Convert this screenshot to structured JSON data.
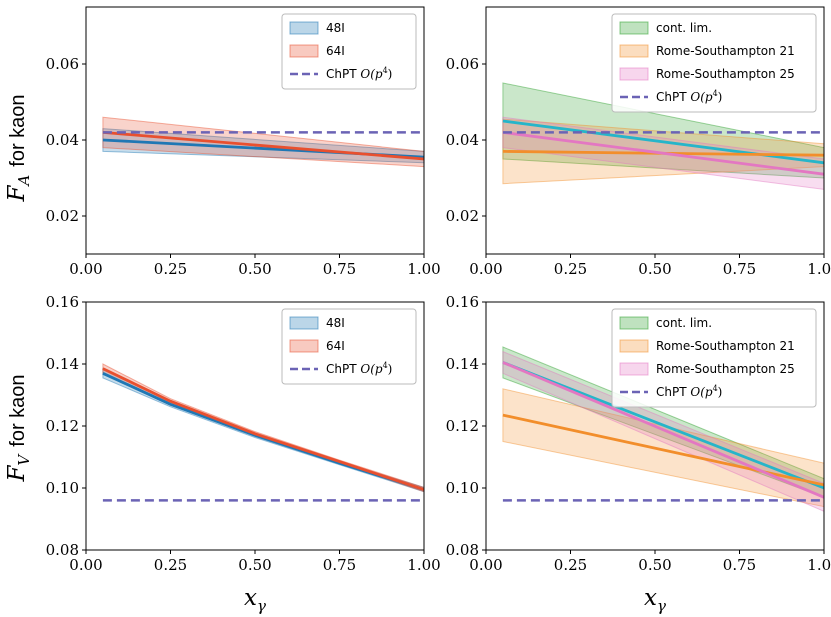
{
  "figure": {
    "xlabel_main": "x",
    "xlabel_sub": "γ",
    "ylabel_top_main": "F",
    "ylabel_top_sub": "A",
    "ylabel_top_rest": "for kaon",
    "ylabel_bottom_main": "F",
    "ylabel_bottom_sub": "V",
    "ylabel_bottom_rest": "for kaon",
    "x_tick_labels": [
      "0.00",
      "0.25",
      "0.50",
      "0.75",
      "1.00"
    ]
  },
  "colors": {
    "blue": "#1f77b4",
    "red": "#e8502f",
    "purple": "#6b63b5",
    "teal": "#26b5c9",
    "green": "#2ca02c",
    "orange": "#f28e2b",
    "pink": "#e377c2"
  },
  "chart_data": [
    {
      "type": "line",
      "id": "FA-lattice",
      "title": "",
      "xlabel": "",
      "ylabel": "F_A for kaon",
      "xlim": [
        0.0,
        1.0
      ],
      "ylim": [
        0.01,
        0.075
      ],
      "yticks": [
        0.02,
        0.04,
        0.06
      ],
      "ytick_labels": [
        "0.02",
        "0.04",
        "0.06"
      ],
      "legend_position": "top-right",
      "series": [
        {
          "name": "48I",
          "kind": "band",
          "color": "#1f77b4",
          "x": [
            0.05,
            1.0
          ],
          "y": [
            0.04,
            0.0355
          ],
          "lower": [
            0.037,
            0.034
          ],
          "upper": [
            0.043,
            0.037
          ]
        },
        {
          "name": "64I",
          "kind": "band",
          "color": "#e8502f",
          "x": [
            0.05,
            1.0
          ],
          "y": [
            0.042,
            0.035
          ],
          "lower": [
            0.038,
            0.033
          ],
          "upper": [
            0.046,
            0.037
          ]
        },
        {
          "name": "ChPT O(p^4)",
          "kind": "dashed",
          "color": "#6b63b5",
          "x": [
            0.05,
            1.0
          ],
          "y": [
            0.042,
            0.042
          ]
        }
      ],
      "legend": [
        {
          "label": "48I",
          "style": "patch",
          "color": "#1f77b4"
        },
        {
          "label": "64I",
          "style": "patch",
          "color": "#e8502f"
        },
        {
          "label": "ChPT ",
          "math": "O(p",
          "sup": "4",
          "close": ")",
          "style": "dash",
          "color": "#6b63b5"
        }
      ]
    },
    {
      "type": "line",
      "id": "FA-continuum",
      "title": "",
      "xlabel": "",
      "ylabel": "",
      "xlim": [
        0.0,
        1.0
      ],
      "ylim": [
        0.01,
        0.075
      ],
      "yticks": [
        0.02,
        0.04,
        0.06
      ],
      "ytick_labels": [
        "0.02",
        "0.04",
        "0.06"
      ],
      "legend_position": "top-right",
      "series": [
        {
          "name": "cont. lim.",
          "kind": "band",
          "color": "#2ca02c",
          "x": [
            0.05,
            1.0
          ],
          "y": [
            0.045,
            0.034
          ],
          "lower": [
            0.035,
            0.03
          ],
          "upper": [
            0.055,
            0.038
          ]
        },
        {
          "name": "Rome-Southampton 21",
          "kind": "band",
          "color": "#f28e2b",
          "x": [
            0.05,
            1.0
          ],
          "y": [
            0.037,
            0.036
          ],
          "lower": [
            0.0285,
            0.033
          ],
          "upper": [
            0.0455,
            0.039
          ]
        },
        {
          "name": "Rome-Southampton 25",
          "kind": "band",
          "color": "#e377c2",
          "x": [
            0.05,
            1.0
          ],
          "y": [
            0.042,
            0.031
          ],
          "lower": [
            0.038,
            0.027
          ],
          "upper": [
            0.046,
            0.035
          ]
        },
        {
          "name": "ChPT O(p^4)",
          "kind": "dashed",
          "color": "#6b63b5",
          "x": [
            0.05,
            1.0
          ],
          "y": [
            0.042,
            0.042
          ]
        }
      ],
      "legend": [
        {
          "label": "cont. lim.",
          "style": "patch",
          "color": "#2ca02c"
        },
        {
          "label": "Rome-Southampton 21",
          "style": "patch",
          "color": "#f28e2b"
        },
        {
          "label": "Rome-Southampton 25",
          "style": "patch",
          "color": "#e377c2"
        },
        {
          "label": "ChPT ",
          "math": "O(p",
          "sup": "4",
          "close": ")",
          "style": "dash",
          "color": "#6b63b5"
        }
      ]
    },
    {
      "type": "line",
      "id": "FV-lattice",
      "title": "",
      "xlabel": "x_γ",
      "ylabel": "F_V for kaon",
      "xlim": [
        0.0,
        1.0
      ],
      "ylim": [
        0.08,
        0.16
      ],
      "yticks": [
        0.08,
        0.1,
        0.12,
        0.14,
        0.16
      ],
      "ytick_labels": [
        "0.08",
        "0.10",
        "0.12",
        "0.14",
        "0.16"
      ],
      "legend_position": "top-right",
      "series": [
        {
          "name": "48I",
          "kind": "band",
          "color": "#1f77b4",
          "x": [
            0.05,
            0.25,
            0.5,
            0.75,
            1.0
          ],
          "y": [
            0.137,
            0.127,
            0.117,
            0.108,
            0.0995
          ],
          "lower": [
            0.1355,
            0.1262,
            0.1163,
            0.1075,
            0.0988
          ],
          "upper": [
            0.1385,
            0.1278,
            0.1177,
            0.1085,
            0.1002
          ]
        },
        {
          "name": "64I",
          "kind": "band",
          "color": "#e8502f",
          "x": [
            0.05,
            0.25,
            0.5,
            0.75,
            1.0
          ],
          "y": [
            0.1385,
            0.128,
            0.1175,
            0.1085,
            0.0995
          ],
          "lower": [
            0.137,
            0.1272,
            0.1168,
            0.108,
            0.0988
          ],
          "upper": [
            0.14,
            0.1288,
            0.1182,
            0.109,
            0.1002
          ]
        },
        {
          "name": "ChPT O(p^4)",
          "kind": "dashed",
          "color": "#6b63b5",
          "x": [
            0.05,
            1.0
          ],
          "y": [
            0.096,
            0.096
          ]
        }
      ],
      "legend": [
        {
          "label": "48I",
          "style": "patch",
          "color": "#1f77b4"
        },
        {
          "label": "64I",
          "style": "patch",
          "color": "#e8502f"
        },
        {
          "label": "ChPT ",
          "math": "O(p",
          "sup": "4",
          "close": ")",
          "style": "dash",
          "color": "#6b63b5"
        }
      ]
    },
    {
      "type": "line",
      "id": "FV-continuum",
      "title": "",
      "xlabel": "x_γ",
      "ylabel": "",
      "xlim": [
        0.0,
        1.0
      ],
      "ylim": [
        0.08,
        0.16
      ],
      "yticks": [
        0.08,
        0.1,
        0.12,
        0.14,
        0.16
      ],
      "ytick_labels": [
        "0.08",
        "0.10",
        "0.12",
        "0.14",
        "0.16"
      ],
      "legend_position": "top-right",
      "series": [
        {
          "name": "cont. lim.",
          "kind": "band",
          "color": "#2ca02c",
          "x": [
            0.05,
            1.0
          ],
          "y": [
            0.1405,
            0.1
          ],
          "lower": [
            0.1355,
            0.097
          ],
          "upper": [
            0.1455,
            0.103
          ]
        },
        {
          "name": "Rome-Southampton 21",
          "kind": "band",
          "color": "#f28e2b",
          "x": [
            0.05,
            1.0
          ],
          "y": [
            0.1235,
            0.101
          ],
          "lower": [
            0.115,
            0.094
          ],
          "upper": [
            0.132,
            0.108
          ]
        },
        {
          "name": "Rome-Southampton 25",
          "kind": "band",
          "color": "#e377c2",
          "x": [
            0.05,
            1.0
          ],
          "y": [
            0.1405,
            0.097
          ],
          "lower": [
            0.137,
            0.0925
          ],
          "upper": [
            0.144,
            0.1015
          ]
        },
        {
          "name": "ChPT O(p^4)",
          "kind": "dashed",
          "color": "#6b63b5",
          "x": [
            0.05,
            1.0
          ],
          "y": [
            0.096,
            0.096
          ]
        }
      ],
      "legend": [
        {
          "label": "cont. lim.",
          "style": "patch",
          "color": "#2ca02c"
        },
        {
          "label": "Rome-Southampton 21",
          "style": "patch",
          "color": "#f28e2b"
        },
        {
          "label": "Rome-Southampton 25",
          "style": "patch",
          "color": "#e377c2"
        },
        {
          "label": "ChPT ",
          "math": "O(p",
          "sup": "4",
          "close": ")",
          "style": "dash",
          "color": "#6b63b5"
        }
      ]
    }
  ]
}
